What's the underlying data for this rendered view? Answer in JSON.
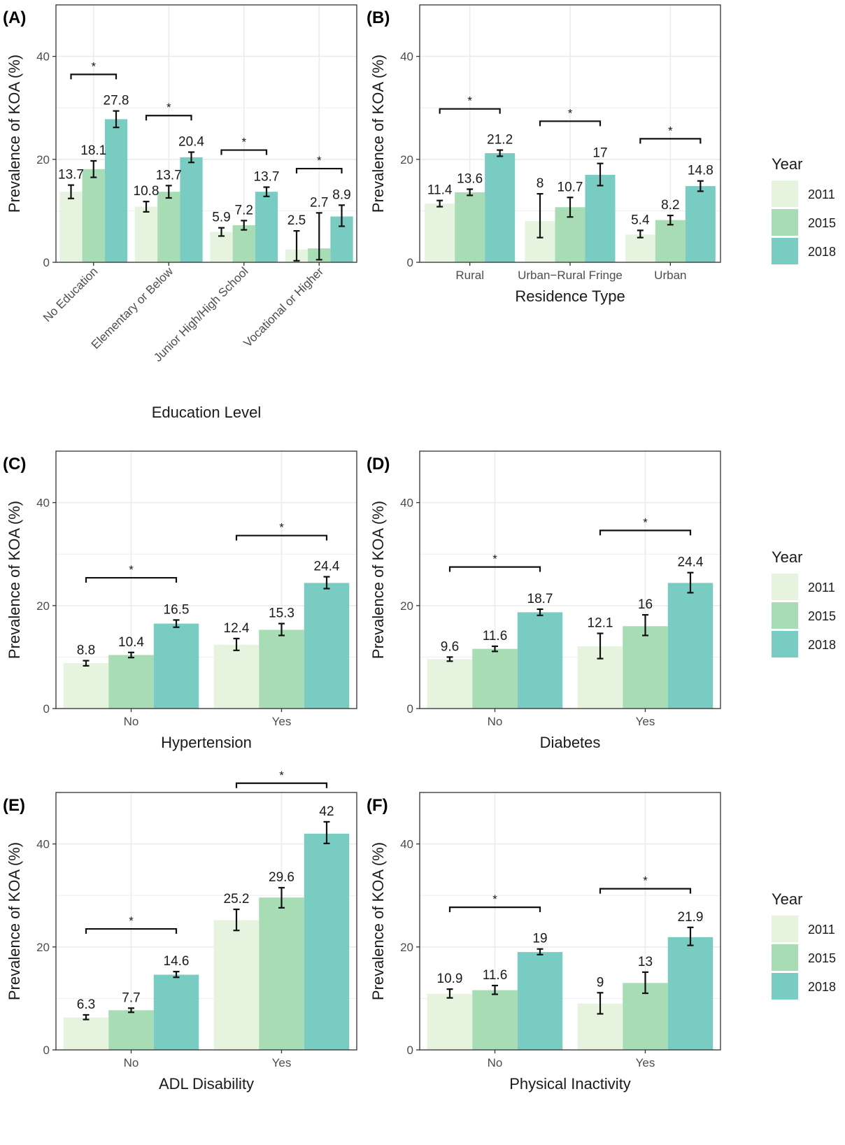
{
  "colors": {
    "2011": "#e6f4df",
    "2015": "#a8dcb5",
    "2018": "#79ccc2",
    "grid": "#ebebeb",
    "panel_border": "#333333",
    "axis_text": "#4d4d4d",
    "text": "#1a1a1a"
  },
  "legend": {
    "title": "Year",
    "items": [
      "2011",
      "2015",
      "2018"
    ]
  },
  "significance_marker": "*",
  "chart_data": [
    {
      "panel_label": "(A)",
      "type": "bar",
      "title": "",
      "xlabel": "Education Level",
      "ylabel": "Prevalence of KOA (%)",
      "ylim": [
        0,
        50
      ],
      "yticks": [
        0,
        20,
        40
      ],
      "grid": true,
      "rotate_x_labels": true,
      "legend": false,
      "categories": [
        "No Education",
        "Elementary or Below",
        "Junior High/High School",
        "Vocational or Higher"
      ],
      "series": [
        {
          "name": "2011",
          "values": [
            13.7,
            10.8,
            5.9,
            2.5
          ],
          "labels": [
            "13.7",
            "10.8",
            "5.9",
            "2.5"
          ],
          "ci_low": [
            12.4,
            9.8,
            5.1,
            0.3
          ],
          "ci_high": [
            15.0,
            11.8,
            6.7,
            6.1
          ]
        },
        {
          "name": "2015",
          "values": [
            18.1,
            13.7,
            7.2,
            2.7
          ],
          "labels": [
            "18.1",
            "13.7",
            "7.2",
            "2.7"
          ],
          "ci_low": [
            16.5,
            12.5,
            6.3,
            0.5
          ],
          "ci_high": [
            19.7,
            14.9,
            8.1,
            9.6
          ]
        },
        {
          "name": "2018",
          "values": [
            27.8,
            20.4,
            13.7,
            8.9
          ],
          "labels": [
            "27.8",
            "20.4",
            "13.7",
            "8.9"
          ],
          "ci_low": [
            26.2,
            19.4,
            12.8,
            7.0
          ],
          "ci_high": [
            29.4,
            21.4,
            14.6,
            11.1
          ]
        }
      ],
      "sig_heights": [
        36.5,
        28.5,
        21.8,
        18.2
      ]
    },
    {
      "panel_label": "(B)",
      "type": "bar",
      "title": "",
      "xlabel": "Residence Type",
      "ylabel": "Prevalence of KOA (%)",
      "ylim": [
        0,
        50
      ],
      "yticks": [
        0,
        20,
        40
      ],
      "grid": true,
      "rotate_x_labels": false,
      "legend": true,
      "categories": [
        "Rural",
        "Urban−Rural Fringe",
        "Urban"
      ],
      "series": [
        {
          "name": "2011",
          "values": [
            11.4,
            8,
            5.4
          ],
          "labels": [
            "11.4",
            "8",
            "5.4"
          ],
          "ci_low": [
            10.8,
            4.8,
            4.8
          ],
          "ci_high": [
            12.0,
            13.3,
            6.2
          ]
        },
        {
          "name": "2015",
          "values": [
            13.6,
            10.7,
            8.2
          ],
          "labels": [
            "13.6",
            "10.7",
            "8.2"
          ],
          "ci_low": [
            13.0,
            8.8,
            7.3
          ],
          "ci_high": [
            14.2,
            12.6,
            9.1
          ]
        },
        {
          "name": "2018",
          "values": [
            21.2,
            17,
            14.8
          ],
          "labels": [
            "21.2",
            "17",
            "14.8"
          ],
          "ci_low": [
            20.6,
            14.9,
            13.8
          ],
          "ci_high": [
            21.8,
            19.2,
            15.8
          ]
        }
      ],
      "sig_heights": [
        29.8,
        27.4,
        24.0
      ]
    },
    {
      "panel_label": "(C)",
      "type": "bar",
      "title": "",
      "xlabel": "Hypertension",
      "ylabel": "Prevalence of KOA (%)",
      "ylim": [
        0,
        50
      ],
      "yticks": [
        0,
        20,
        40
      ],
      "grid": true,
      "rotate_x_labels": false,
      "legend": false,
      "categories": [
        "No",
        "Yes"
      ],
      "series": [
        {
          "name": "2011",
          "values": [
            8.8,
            12.4
          ],
          "labels": [
            "8.8",
            "12.4"
          ],
          "ci_low": [
            8.3,
            11.3
          ],
          "ci_high": [
            9.3,
            13.6
          ]
        },
        {
          "name": "2015",
          "values": [
            10.4,
            15.3
          ],
          "labels": [
            "10.4",
            "15.3"
          ],
          "ci_low": [
            9.9,
            14.2
          ],
          "ci_high": [
            10.9,
            16.5
          ]
        },
        {
          "name": "2018",
          "values": [
            16.5,
            24.4
          ],
          "labels": [
            "16.5",
            "24.4"
          ],
          "ci_low": [
            15.8,
            23.3
          ],
          "ci_high": [
            17.2,
            25.6
          ]
        }
      ],
      "sig_heights": [
        25.4,
        33.6
      ]
    },
    {
      "panel_label": "(D)",
      "type": "bar",
      "title": "",
      "xlabel": "Diabetes",
      "ylabel": "Prevalence of KOA (%)",
      "ylim": [
        0,
        50
      ],
      "yticks": [
        0,
        20,
        40
      ],
      "grid": true,
      "rotate_x_labels": false,
      "legend": true,
      "categories": [
        "No",
        "Yes"
      ],
      "series": [
        {
          "name": "2011",
          "values": [
            9.6,
            12.1
          ],
          "labels": [
            "9.6",
            "12.1"
          ],
          "ci_low": [
            9.2,
            9.7
          ],
          "ci_high": [
            10.0,
            14.6
          ]
        },
        {
          "name": "2015",
          "values": [
            11.6,
            16
          ],
          "labels": [
            "11.6",
            "16"
          ],
          "ci_low": [
            11.1,
            14.2
          ],
          "ci_high": [
            12.1,
            18.2
          ]
        },
        {
          "name": "2018",
          "values": [
            18.7,
            24.4
          ],
          "labels": [
            "18.7",
            "24.4"
          ],
          "ci_low": [
            18.1,
            22.5
          ],
          "ci_high": [
            19.3,
            26.4
          ]
        }
      ],
      "sig_heights": [
        27.5,
        34.6
      ]
    },
    {
      "panel_label": "(E)",
      "type": "bar",
      "title": "",
      "xlabel": "ADL Disability",
      "ylabel": "Prevalence of KOA (%)",
      "ylim": [
        0,
        50
      ],
      "yticks": [
        0,
        20,
        40
      ],
      "grid": true,
      "rotate_x_labels": false,
      "legend": false,
      "categories": [
        "No",
        "Yes"
      ],
      "series": [
        {
          "name": "2011",
          "values": [
            6.3,
            25.2
          ],
          "labels": [
            "6.3",
            "25.2"
          ],
          "ci_low": [
            5.9,
            23.2
          ],
          "ci_high": [
            6.8,
            27.3
          ]
        },
        {
          "name": "2015",
          "values": [
            7.7,
            29.6
          ],
          "labels": [
            "7.7",
            "29.6"
          ],
          "ci_low": [
            7.3,
            27.6
          ],
          "ci_high": [
            8.1,
            31.5
          ]
        },
        {
          "name": "2018",
          "values": [
            14.6,
            42
          ],
          "labels": [
            "14.6",
            "42"
          ],
          "ci_low": [
            14.1,
            40.1
          ],
          "ci_high": [
            15.2,
            44.3
          ]
        }
      ],
      "sig_heights": [
        23.5,
        51.8
      ]
    },
    {
      "panel_label": "(F)",
      "type": "bar",
      "title": "",
      "xlabel": "Physical Inactivity",
      "ylabel": "Prevalence of KOA (%)",
      "ylim": [
        0,
        50
      ],
      "yticks": [
        0,
        20,
        40
      ],
      "grid": true,
      "rotate_x_labels": false,
      "legend": true,
      "categories": [
        "No",
        "Yes"
      ],
      "series": [
        {
          "name": "2011",
          "values": [
            10.9,
            9
          ],
          "labels": [
            "10.9",
            "9"
          ],
          "ci_low": [
            10.1,
            7.0
          ],
          "ci_high": [
            11.8,
            11.1
          ]
        },
        {
          "name": "2015",
          "values": [
            11.6,
            13
          ],
          "labels": [
            "11.6",
            "13"
          ],
          "ci_low": [
            10.8,
            11.0
          ],
          "ci_high": [
            12.5,
            15.1
          ]
        },
        {
          "name": "2018",
          "values": [
            19,
            21.9
          ],
          "labels": [
            "19",
            "21.9"
          ],
          "ci_low": [
            18.5,
            20.3
          ],
          "ci_high": [
            19.6,
            23.8
          ]
        }
      ],
      "sig_heights": [
        27.7,
        31.3
      ]
    }
  ]
}
